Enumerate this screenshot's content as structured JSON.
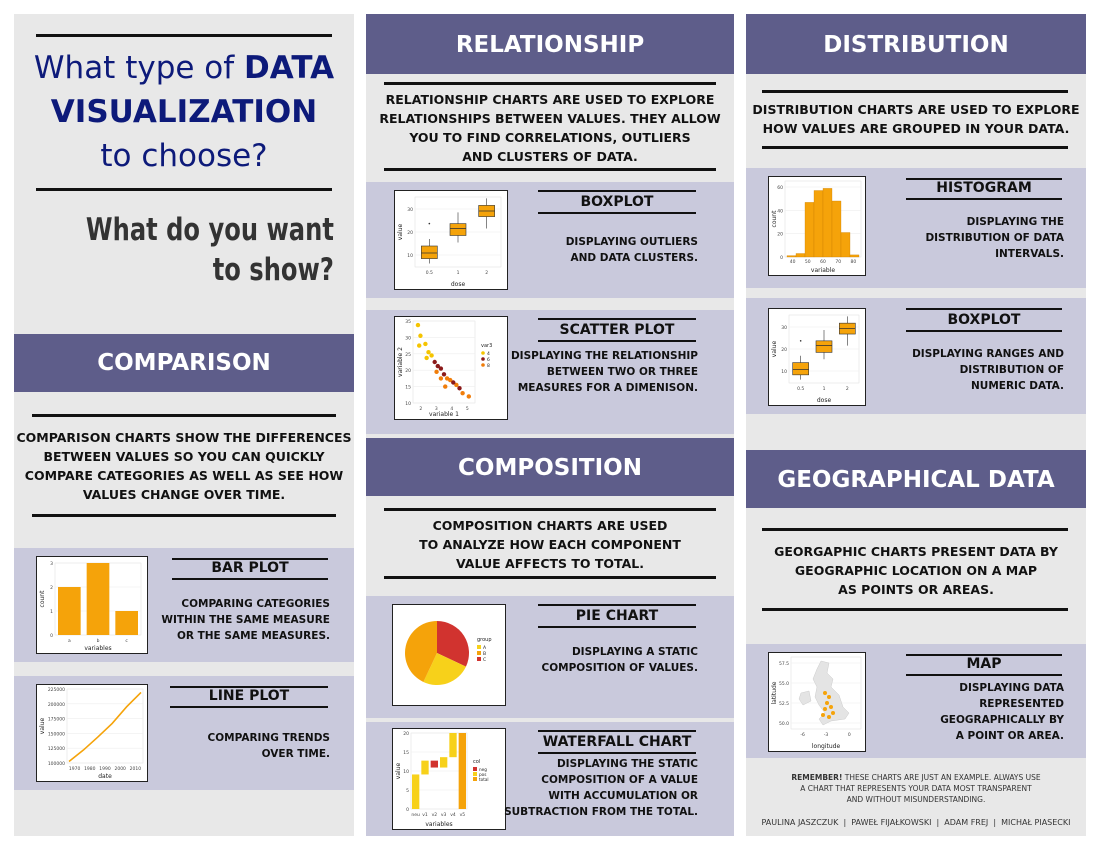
{
  "title": {
    "line1": "What type of ",
    "line1_bold": "DATA",
    "line2": "VISUALIZATION",
    "line3": "to choose?"
  },
  "question": "What do you want\nto show?",
  "comparison": {
    "header": "COMPARISON",
    "desc": "COMPARISON CHARTS SHOW THE DIFFERENCES\nBETWEEN VALUES SO YOU CAN QUICKLY\nCOMPARE CATEGORIES AS WELL AS SEE HOW\nVALUES CHANGE OVER TIME.",
    "bar": {
      "title": "BAR PLOT",
      "text": "COMPARING CATEGORIES\nWITHIN THE SAME MEASURE\nOR THE SAME MEASURES.",
      "chart": {
        "ylabel": "count",
        "xlabel": "variables",
        "yticks": [
          "0",
          "1",
          "2",
          "3"
        ],
        "cats": [
          "a",
          "b",
          "c"
        ],
        "values": [
          2,
          3,
          1
        ]
      }
    },
    "line": {
      "title": "LINE PLOT",
      "text": "COMPARING TRENDS\nOVER TIME.",
      "chart": {
        "ylabel": "value",
        "xlabel": "date",
        "yticks": [
          "100000",
          "125000",
          "150000",
          "175000",
          "200000",
          "225000"
        ],
        "xticks": [
          "1970",
          "1980",
          "1990",
          "2000",
          "2010"
        ]
      }
    }
  },
  "relationship": {
    "header": "RELATIONSHIP",
    "desc": "RELATIONSHIP CHARTS ARE USED TO EXPLORE\nRELATIONSHIPS BETWEEN VALUES. THEY ALLOW\nYOU TO FIND CORRELATIONS, OUTLIERS\nAND CLUSTERS OF DATA.",
    "box": {
      "title": "BOXPLOT",
      "text": "DISPLAYING OUTLIERS\nAND DATA CLUSTERS.",
      "chart": {
        "ylabel": "value",
        "xlabel": "dose",
        "yticks": [
          "10",
          "20",
          "30"
        ],
        "xticks": [
          "0.5",
          "1",
          "2"
        ]
      }
    },
    "scatter": {
      "title": "SCATTER PLOT",
      "text": "DISPLAYING THE RELATIONSHIP\nBETWEEN TWO OR THREE\nMEASURES FOR A DIMENISON.",
      "chart": {
        "ylabel": "variable 2",
        "xlabel": "variable 1",
        "yticks": [
          "10",
          "15",
          "20",
          "25",
          "30",
          "35"
        ],
        "xticks": [
          "2",
          "3",
          "4",
          "5"
        ],
        "legend_title": "var3",
        "legend": [
          "4",
          "6",
          "8"
        ]
      }
    }
  },
  "composition": {
    "header": "COMPOSITION",
    "desc": "COMPOSITION CHARTS ARE USED\nTO ANALYZE HOW EACH COMPONENT\nVALUE AFFECTS TO TOTAL.",
    "pie": {
      "title": "PIE CHART",
      "text": "DISPLAYING A STATIC\nCOMPOSITION OF VALUES.",
      "chart": {
        "legend_title": "group",
        "legend": [
          "A",
          "B",
          "C"
        ]
      }
    },
    "waterfall": {
      "title": "WATERFALL CHART",
      "text": "DISPLAYING THE STATIC\nCOMPOSITION OF A VALUE\nWITH ACCUMULATION OR\nSUBTRACTION FROM THE TOTAL.",
      "chart": {
        "ylabel": "value",
        "xlabel": "variables",
        "yticks": [
          "0",
          "5",
          "10",
          "15",
          "20"
        ],
        "xticks": [
          "neu",
          "v1",
          "v2",
          "v3",
          "v4",
          "v5"
        ],
        "legend_title": "col",
        "legend": [
          "neg",
          "pos",
          "total"
        ]
      }
    }
  },
  "distribution": {
    "header": "DISTRIBUTION",
    "desc": "DISTRIBUTION CHARTS ARE USED TO EXPLORE\nHOW VALUES ARE GROUPED IN YOUR DATA.",
    "hist": {
      "title": "HISTOGRAM",
      "text": "DISPLAYING THE\nDISTRIBUTION OF DATA\nINTERVALS.",
      "chart": {
        "ylabel": "count",
        "xlabel": "variable",
        "yticks": [
          "0",
          "20",
          "40",
          "60"
        ],
        "xticks": [
          "40",
          "50",
          "60",
          "70",
          "80"
        ]
      }
    },
    "box": {
      "title": "BOXPLOT",
      "text": "DISPLAYING RANGES AND\nDISTRIBUTION OF\nNUMERIC DATA.",
      "chart": {
        "ylabel": "value",
        "xlabel": "dose",
        "yticks": [
          "10",
          "20",
          "30"
        ],
        "xticks": [
          "0.5",
          "1",
          "2"
        ]
      }
    }
  },
  "geo": {
    "header": "GEOGRAPHICAL DATA",
    "desc": "GEORGAPHIC CHARTS PRESENT DATA BY\nGEOGRAPHIC LOCATION ON A MAP\nAS POINTS OR AREAS.",
    "map": {
      "title": "MAP",
      "text": "DISPLAYING DATA\nREPRESENTED\nGEOGRAPHICALLY BY\nA POINT OR AREA.",
      "chart": {
        "ylabel": "latitude",
        "xlabel": "longitude",
        "yticks": [
          "50.0",
          "52.5",
          "55.0",
          "57.5"
        ],
        "xticks": [
          "-6",
          "-3",
          "0"
        ]
      }
    }
  },
  "remember": {
    "bold": "REMEMBER!",
    "text": " THESE CHARTS ARE JUST AN EXAMPLE. ALWAYS USE\nA CHART THAT REPRESENTS YOUR DATA MOST TRANSPARENT\nAND WITHOUT MISUNDERSTANDING."
  },
  "authors": "PAULINA JASZCZUK  |  PAWEŁ FIJAŁKOWSKI  |  ADAM FREJ  |  MICHAŁ PIASECKI",
  "colors": {
    "header": "#5e5d8a",
    "band": "#c9c9dc",
    "panel": "#e8e8e8",
    "title_blue": "#0d1a7a",
    "orange": "#f5a30a"
  }
}
